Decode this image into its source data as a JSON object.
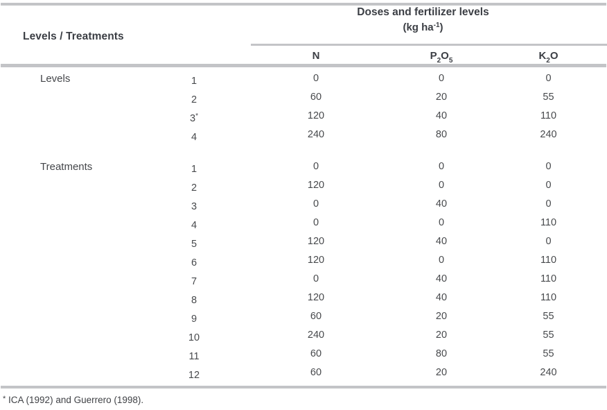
{
  "header": {
    "corner": "Levels / Treatments",
    "group_title": "Doses and fertilizer levels",
    "unit_prefix": "(kg ha",
    "unit_sup": "-1",
    "unit_suffix": ")",
    "columns": {
      "n": "N",
      "p": {
        "b1": "P",
        "s1": "2",
        "b2": "O",
        "s2": "5"
      },
      "k": {
        "b1": "K",
        "s1": "2",
        "b2": "O"
      }
    }
  },
  "sections": [
    {
      "label": "Levels",
      "rows": [
        {
          "id": "1",
          "id_sup": "",
          "n": "0",
          "p": "0",
          "k": "0"
        },
        {
          "id": "2",
          "id_sup": "",
          "n": "60",
          "p": "20",
          "k": "55"
        },
        {
          "id": "3",
          "id_sup": "*",
          "n": "120",
          "p": "40",
          "k": "110"
        },
        {
          "id": "4",
          "id_sup": "",
          "n": "240",
          "p": "80",
          "k": "240"
        }
      ]
    },
    {
      "label": "Treatments",
      "rows": [
        {
          "id": "1",
          "id_sup": "",
          "n": "0",
          "p": "0",
          "k": "0"
        },
        {
          "id": "2",
          "id_sup": "",
          "n": "120",
          "p": "0",
          "k": "0"
        },
        {
          "id": "3",
          "id_sup": "",
          "n": "0",
          "p": "40",
          "k": "0"
        },
        {
          "id": "4",
          "id_sup": "",
          "n": "0",
          "p": "0",
          "k": "110"
        },
        {
          "id": "5",
          "id_sup": "",
          "n": "120",
          "p": "40",
          "k": "0"
        },
        {
          "id": "6",
          "id_sup": "",
          "n": "120",
          "p": "0",
          "k": "110"
        },
        {
          "id": "7",
          "id_sup": "",
          "n": "0",
          "p": "40",
          "k": "110"
        },
        {
          "id": "8",
          "id_sup": "",
          "n": "120",
          "p": "40",
          "k": "110"
        },
        {
          "id": "9",
          "id_sup": "",
          "n": "60",
          "p": "20",
          "k": "55"
        },
        {
          "id": "10",
          "id_sup": "",
          "n": "240",
          "p": "20",
          "k": "55"
        },
        {
          "id": "11",
          "id_sup": "",
          "n": "60",
          "p": "80",
          "k": "55"
        },
        {
          "id": "12",
          "id_sup": "",
          "n": "60",
          "p": "20",
          "k": "240"
        }
      ]
    }
  ],
  "footnote": {
    "marker": "*",
    "text": " ICA (1992) and Guerrero (1998)."
  }
}
